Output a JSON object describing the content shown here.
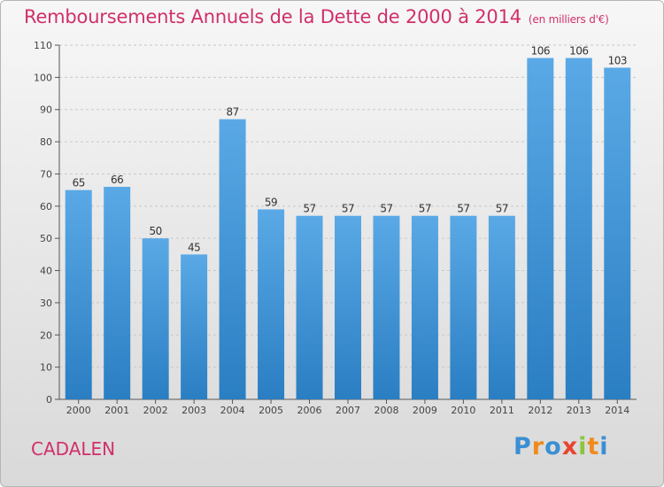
{
  "chart_data": {
    "type": "bar",
    "title": "Remboursements Annuels de la Dette de 2000 à 2014",
    "unit": "(en milliers d'€)",
    "categories": [
      "2000",
      "2001",
      "2002",
      "2003",
      "2004",
      "2005",
      "2006",
      "2007",
      "2008",
      "2009",
      "2010",
      "2011",
      "2012",
      "2013",
      "2014"
    ],
    "values": [
      65,
      66,
      50,
      45,
      87,
      59,
      57,
      57,
      57,
      57,
      57,
      57,
      106,
      106,
      103
    ],
    "ylim": [
      0,
      110
    ],
    "yticks": [
      0,
      10,
      20,
      30,
      40,
      50,
      60,
      70,
      80,
      90,
      100,
      110
    ],
    "grid": "horizontal dashed",
    "bar_color_top": "#5aa9e6",
    "bar_color_bottom": "#2a7ec2"
  },
  "place_name": "CADALEN",
  "logo": {
    "letters": [
      "P",
      "r",
      "o",
      "x",
      "i",
      "t",
      "i"
    ],
    "colors": [
      "#3a8fd4",
      "#f08a1a",
      "#3a8fd4",
      "#e6452f",
      "#8cc63f",
      "#f08a1a",
      "#3a8fd4"
    ]
  }
}
